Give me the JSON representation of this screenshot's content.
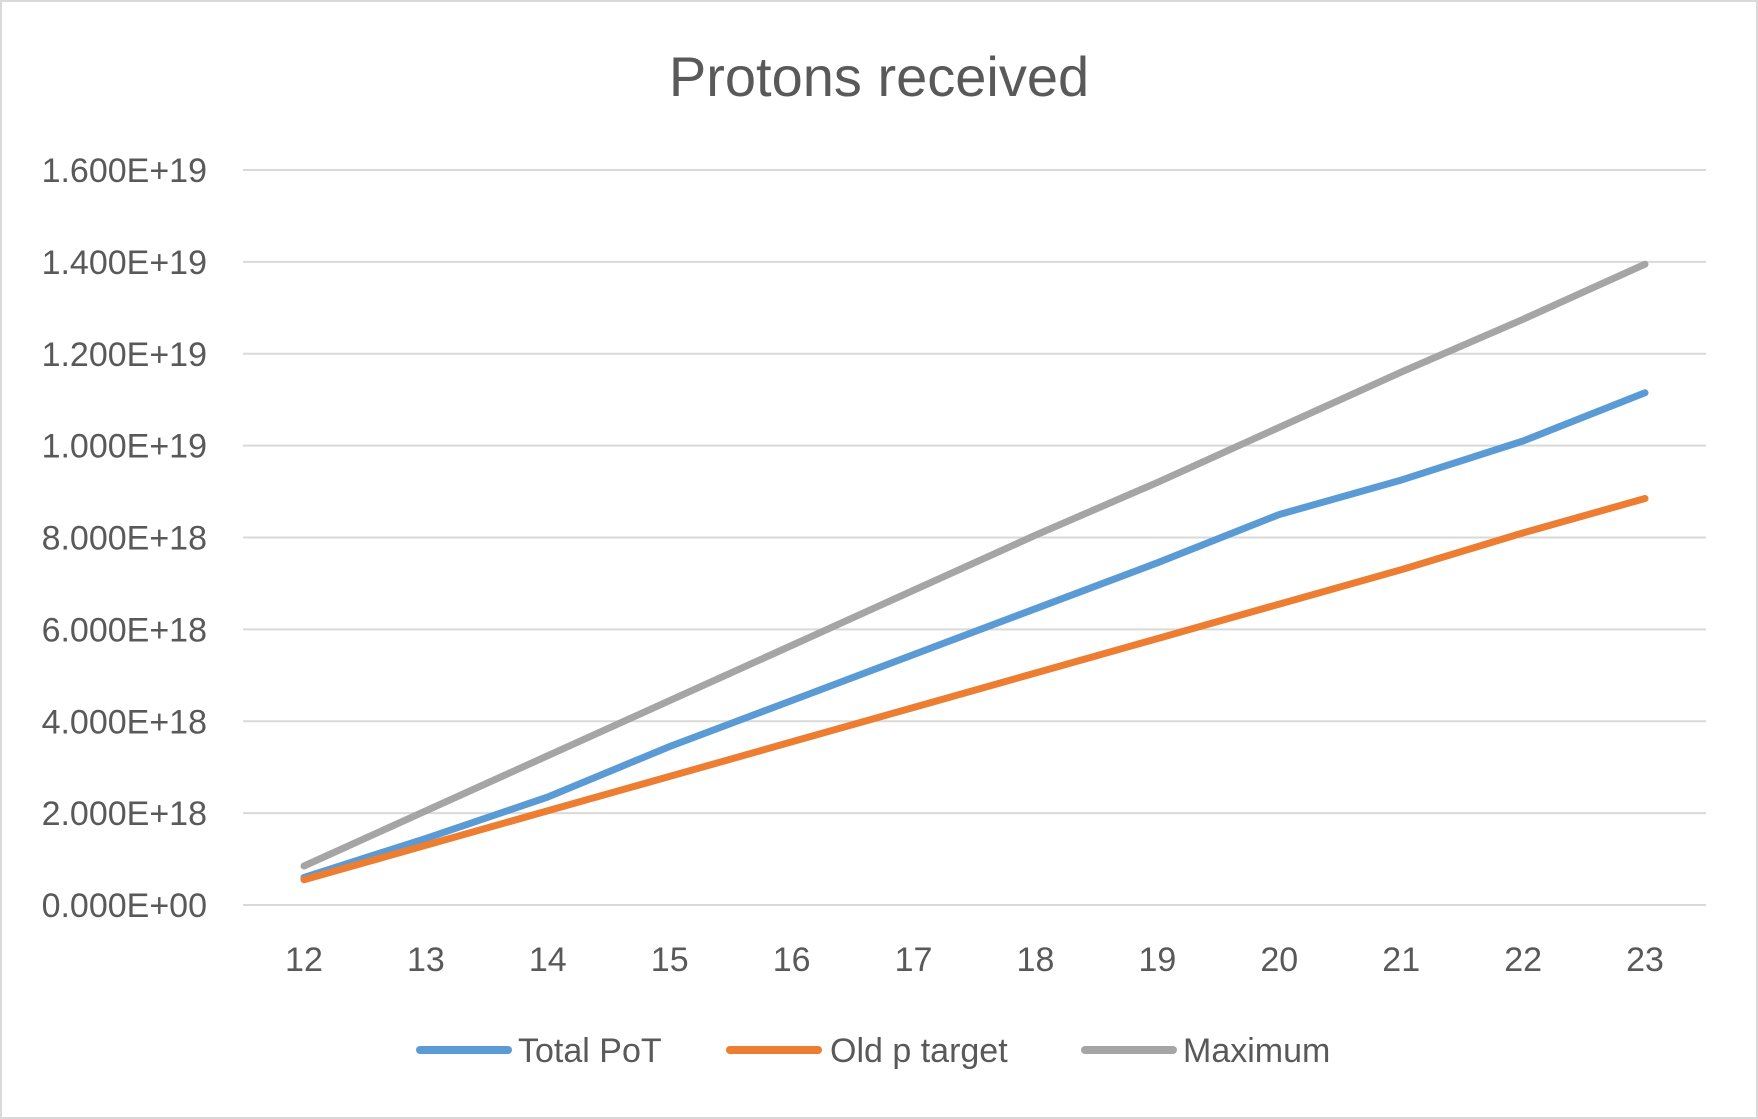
{
  "chart_data": {
    "type": "line",
    "title": "Protons received",
    "xlabel": "",
    "ylabel": "",
    "categories": [
      "12",
      "13",
      "14",
      "15",
      "16",
      "17",
      "18",
      "19",
      "20",
      "21",
      "22",
      "23"
    ],
    "ylim": [
      0,
      1.6e+19
    ],
    "yticks": [
      0,
      2e+18,
      4e+18,
      6e+18,
      8e+18,
      1e+19,
      1.2e+19,
      1.4e+19,
      1.6e+19
    ],
    "ytick_labels": [
      "0.000E+00",
      "2.000E+18",
      "4.000E+18",
      "6.000E+18",
      "8.000E+18",
      "1.000E+19",
      "1.200E+19",
      "1.400E+19",
      "1.600E+19"
    ],
    "grid": true,
    "legend_position": "bottom",
    "series": [
      {
        "name": "Total PoT",
        "color": "#5B9BD5",
        "values": [
          6e+17,
          1.45e+18,
          2.35e+18,
          3.45e+18,
          4.45e+18,
          5.45e+18,
          6.45e+18,
          7.45e+18,
          8.5e+18,
          9.25e+18,
          1.01e+19,
          1.115e+19
        ]
      },
      {
        "name": "Old p target",
        "color": "#ED7D31",
        "values": [
          5.5e+17,
          1.3e+18,
          2.05e+18,
          2.8e+18,
          3.55e+18,
          4.3e+18,
          5.05e+18,
          5.8e+18,
          6.55e+18,
          7.3e+18,
          8.1e+18,
          8.85e+18
        ]
      },
      {
        "name": "Maximum",
        "color": "#A5A5A5",
        "values": [
          8.5e+17,
          2.05e+18,
          3.25e+18,
          4.45e+18,
          5.65e+18,
          6.85e+18,
          8.05e+18,
          9.2e+18,
          1.04e+19,
          1.16e+19,
          1.275e+19,
          1.395e+19
        ]
      }
    ]
  }
}
